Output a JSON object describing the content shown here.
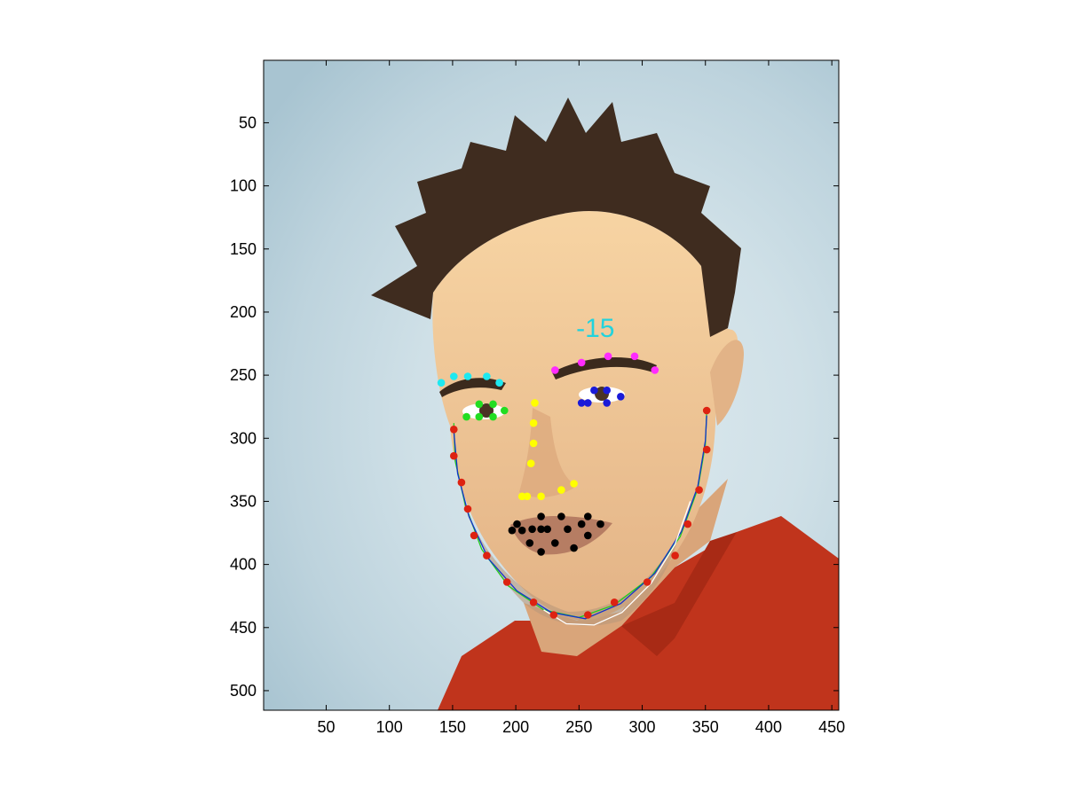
{
  "chart_data": {
    "type": "scatter",
    "title": "",
    "xlabel": "",
    "ylabel": "",
    "xlim": [
      0.5,
      455.5
    ],
    "ylim": [
      0.5,
      515.5
    ],
    "y_reversed": true,
    "grid": false,
    "x_ticks": [
      50,
      100,
      150,
      200,
      250,
      300,
      350,
      400,
      450
    ],
    "y_ticks": [
      50,
      100,
      150,
      200,
      250,
      300,
      350,
      400,
      450,
      500
    ],
    "annotation": {
      "text": "-15",
      "x": 263,
      "y": 212,
      "color": "#22d3dd"
    },
    "background_image": "cartoon portrait of a man with spiky brown hair and red shirt",
    "series": [
      {
        "color": "#1ee8f0",
        "points": [
          [
            141,
            256
          ],
          [
            151,
            251
          ],
          [
            162,
            251
          ],
          [
            177,
            251
          ],
          [
            187,
            256
          ]
        ]
      },
      {
        "color": "#ff2bff",
        "points": [
          [
            231,
            246
          ],
          [
            252,
            240
          ],
          [
            273,
            235
          ],
          [
            294,
            235
          ],
          [
            310,
            246
          ]
        ]
      },
      {
        "color": "#22dd22",
        "points": [
          [
            161,
            283
          ],
          [
            171,
            273
          ],
          [
            171,
            283
          ],
          [
            182,
            273
          ],
          [
            182,
            283
          ],
          [
            191,
            278
          ]
        ]
      },
      {
        "color": "#1a1ad8",
        "points": [
          [
            252,
            272
          ],
          [
            257,
            272
          ],
          [
            262,
            262
          ],
          [
            272,
            262
          ],
          [
            272,
            272
          ],
          [
            283,
            267
          ]
        ]
      },
      {
        "color": "#ffff00",
        "points": [
          [
            215,
            272
          ],
          [
            214,
            288
          ],
          [
            214,
            304
          ],
          [
            212,
            320
          ],
          [
            205,
            346
          ],
          [
            209,
            346
          ],
          [
            220,
            346
          ],
          [
            236,
            341
          ],
          [
            246,
            336
          ]
        ]
      },
      {
        "color": "#000000",
        "points": [
          [
            197,
            373
          ],
          [
            201,
            368
          ],
          [
            205,
            373
          ],
          [
            211,
            383
          ],
          [
            213,
            372
          ],
          [
            220,
            372
          ],
          [
            220,
            362
          ],
          [
            225,
            372
          ],
          [
            231,
            383
          ],
          [
            236,
            362
          ],
          [
            241,
            372
          ],
          [
            246,
            387
          ],
          [
            252,
            368
          ],
          [
            257,
            362
          ],
          [
            257,
            377
          ],
          [
            267,
            368
          ],
          [
            220,
            390
          ]
        ]
      },
      {
        "color": "#dd2211",
        "points": [
          [
            151,
            293
          ],
          [
            151,
            314
          ],
          [
            157,
            335
          ],
          [
            162,
            356
          ],
          [
            167,
            377
          ],
          [
            177,
            393
          ],
          [
            193,
            414
          ],
          [
            214,
            430
          ],
          [
            230,
            440
          ],
          [
            257,
            440
          ],
          [
            278,
            430
          ],
          [
            304,
            414
          ],
          [
            326,
            393
          ],
          [
            336,
            368
          ],
          [
            345,
            341
          ],
          [
            351,
            309
          ],
          [
            351,
            278
          ]
        ]
      }
    ],
    "curves": [
      {
        "color": "#22cc22",
        "points": [
          [
            151,
            288
          ],
          [
            152,
            318
          ],
          [
            160,
            353
          ],
          [
            173,
            388
          ],
          [
            194,
            417
          ],
          [
            222,
            436
          ],
          [
            250,
            442
          ],
          [
            278,
            432
          ],
          [
            307,
            410
          ],
          [
            330,
            378
          ],
          [
            344,
            340
          ],
          [
            350,
            305
          ],
          [
            351,
            278
          ]
        ]
      },
      {
        "color": "#1133cc",
        "points": [
          [
            151,
            295
          ],
          [
            154,
            328
          ],
          [
            163,
            362
          ],
          [
            178,
            395
          ],
          [
            201,
            421
          ],
          [
            228,
            438
          ],
          [
            255,
            443
          ],
          [
            283,
            431
          ],
          [
            310,
            407
          ],
          [
            331,
            374
          ],
          [
            344,
            338
          ],
          [
            350,
            302
          ],
          [
            351,
            282
          ]
        ]
      },
      {
        "color": "#ffffff",
        "points": [
          [
            222,
            436
          ],
          [
            240,
            447
          ],
          [
            262,
            448
          ],
          [
            284,
            438
          ],
          [
            307,
            415
          ],
          [
            326,
            384
          ],
          [
            338,
            350
          ]
        ]
      }
    ]
  }
}
